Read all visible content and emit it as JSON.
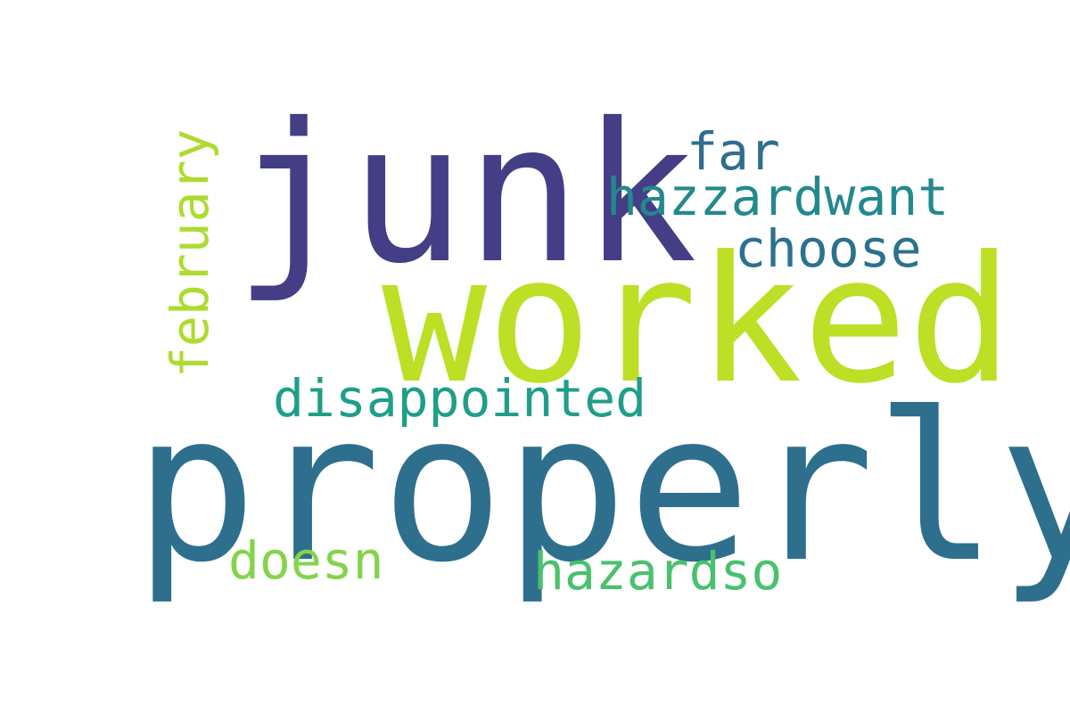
{
  "words": {
    "junk": {
      "text": "junk",
      "color": "#433e85"
    },
    "worked": {
      "text": "worked",
      "color": "#bddf26"
    },
    "properly": {
      "text": "properly",
      "color": "#2e6f8e"
    },
    "far": {
      "text": "far",
      "color": "#2e6e8e"
    },
    "hazzardwant": {
      "text": "hazzardwant",
      "color": "#23898e"
    },
    "choose": {
      "text": "choose",
      "color": "#2c718e"
    },
    "disappointed": {
      "text": "disappointed",
      "color": "#1f9e89"
    },
    "doesn": {
      "text": "doesn",
      "color": "#84d44b"
    },
    "hazardso": {
      "text": "hazardso",
      "color": "#4ac16d"
    },
    "february": {
      "text": "february",
      "color": "#addc30"
    }
  }
}
